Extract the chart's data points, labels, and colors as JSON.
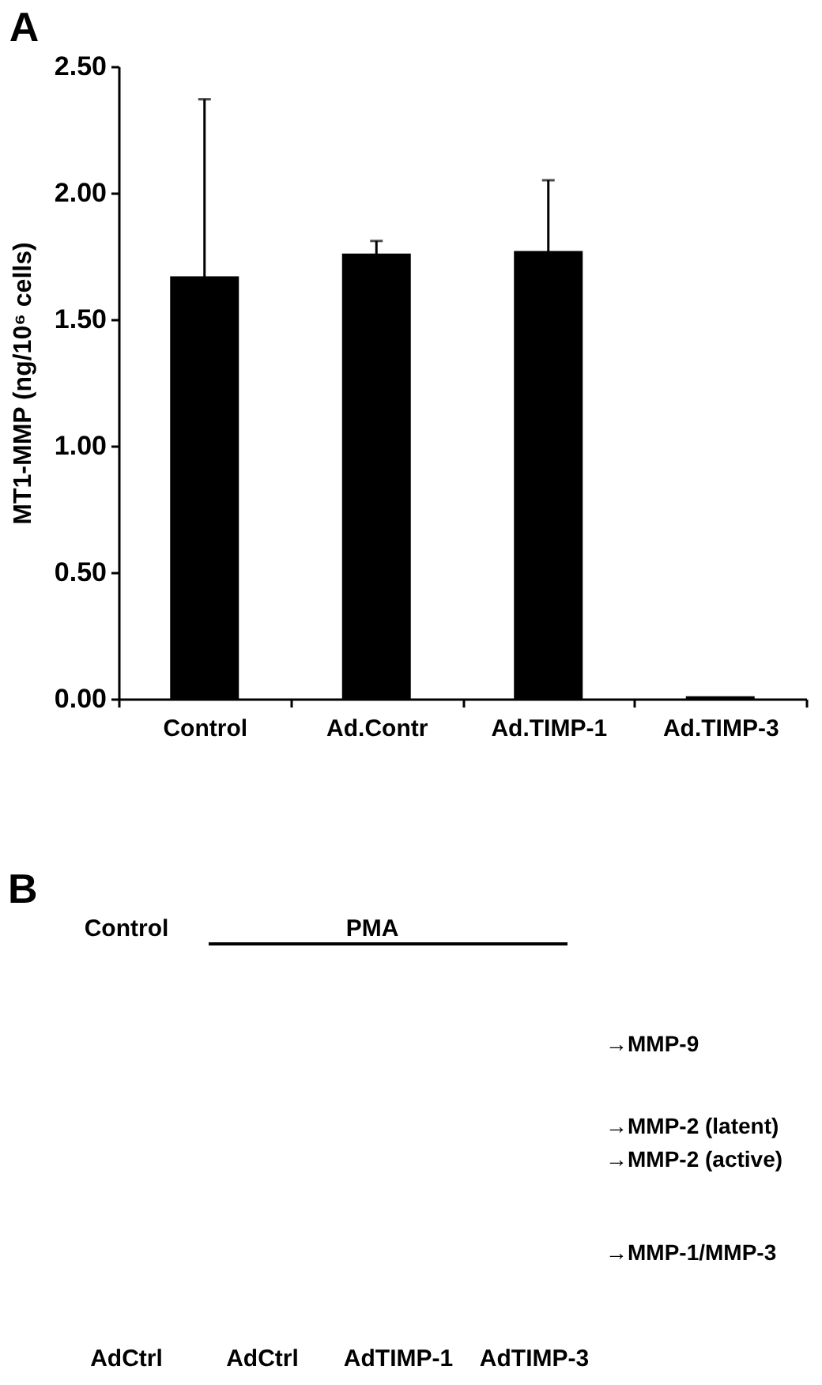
{
  "chart_data": [
    {
      "type": "bar",
      "title": "A",
      "ylabel": "MT1-MMP (ng/10⁶ cells)",
      "categories": [
        "Control",
        "Ad.Contr",
        "Ad.TIMP-1",
        "Ad.TIMP-3"
      ],
      "values": [
        1.67,
        1.76,
        1.77,
        0.01
      ],
      "errors": [
        0.7,
        0.05,
        0.28,
        null
      ],
      "color": "#000000",
      "ylim": [
        0,
        2.5
      ],
      "yticks": [
        {
          "value": 0,
          "label": "0.00"
        },
        {
          "value": 0.5,
          "label": "0.50"
        },
        {
          "value": 1,
          "label": "1.00"
        },
        {
          "value": 1.5,
          "label": "1.50"
        },
        {
          "value": 2,
          "label": "2.00"
        },
        {
          "value": 2.5,
          "label": "2.50"
        }
      ]
    },
    {
      "type": "other",
      "title": "B",
      "categories": [
        "AdCtrl",
        "AdCtrl",
        "AdTIMP-1",
        "AdTIMP-3"
      ],
      "annotations": [
        "Control",
        "PMA",
        "→MMP-9",
        "→MMP-2 (latent)",
        "→MMP-2 (active)",
        "→MMP-1/MMP-3"
      ]
    }
  ]
}
